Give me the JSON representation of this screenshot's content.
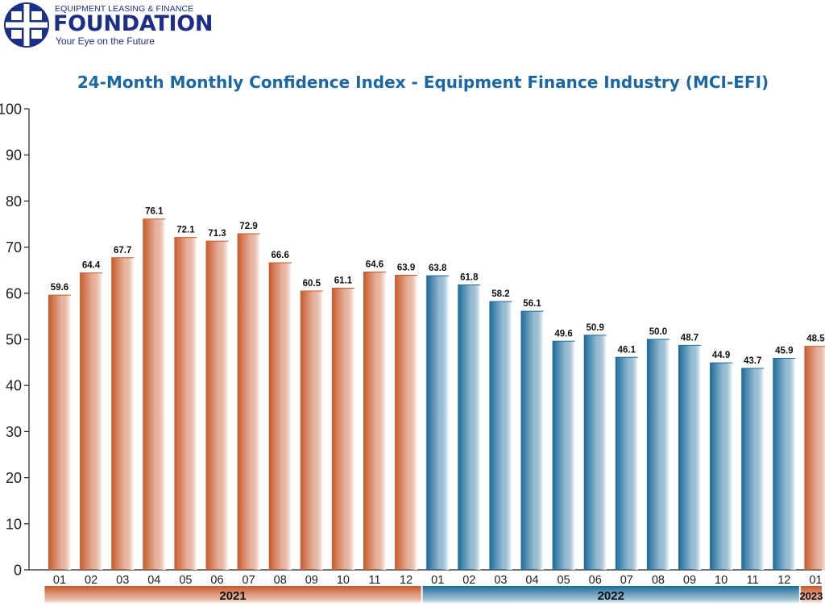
{
  "logo": {
    "top_line": "EQUIPMENT LEASING & FINANCE",
    "name": "FOUNDATION",
    "tagline": "Your Eye on the Future",
    "icon": "globe-grid-icon"
  },
  "chart_data": {
    "type": "bar",
    "title": "24-Month Monthly Confidence Index - Equipment Finance Industry (MCI-EFI)",
    "xlabel": "",
    "ylabel": "",
    "ylim": [
      0,
      100
    ],
    "y_ticks": [
      "0",
      "10",
      "20",
      "30",
      "40",
      "50",
      "60",
      "70",
      "80",
      "90",
      "100"
    ],
    "grid": false,
    "legend": "none",
    "categories": [
      "01",
      "02",
      "03",
      "04",
      "05",
      "06",
      "07",
      "08",
      "09",
      "10",
      "11",
      "12",
      "01",
      "02",
      "03",
      "04",
      "05",
      "06",
      "07",
      "08",
      "09",
      "10",
      "11",
      "12",
      "01"
    ],
    "values": [
      59.6,
      64.4,
      67.7,
      76.1,
      72.1,
      71.3,
      72.9,
      66.6,
      60.5,
      61.1,
      64.6,
      63.9,
      63.8,
      61.8,
      58.2,
      56.1,
      49.6,
      50.9,
      46.1,
      50.0,
      48.7,
      44.9,
      43.7,
      45.9,
      48.5
    ],
    "value_labels": [
      "59.6",
      "64.4",
      "67.7",
      "76.1",
      "72.1",
      "71.3",
      "72.9",
      "66.6",
      "60.5",
      "61.1",
      "64.6",
      "63.9",
      "63.8",
      "61.8",
      "58.2",
      "56.1",
      "49.6",
      "50.9",
      "46.1",
      "50.0",
      "48.7",
      "44.9",
      "43.7",
      "45.9",
      "48.5"
    ],
    "bar_group": [
      "2021",
      "2021",
      "2021",
      "2021",
      "2021",
      "2021",
      "2021",
      "2021",
      "2021",
      "2021",
      "2021",
      "2021",
      "2022",
      "2022",
      "2022",
      "2022",
      "2022",
      "2022",
      "2022",
      "2022",
      "2022",
      "2022",
      "2022",
      "2022",
      "2023"
    ],
    "years": [
      {
        "label": "2021",
        "start": 0,
        "end": 11,
        "color": "#c8592a"
      },
      {
        "label": "2022",
        "start": 12,
        "end": 23,
        "color": "#1a6a9a"
      },
      {
        "label": "2023",
        "start": 24,
        "end": 24,
        "color": "#c8592a"
      }
    ],
    "colors": {
      "2021": "#c8592a",
      "2022": "#1a6a9a",
      "2023": "#c8592a",
      "title": "#1b67a3",
      "logo": "#1c2f86"
    }
  }
}
